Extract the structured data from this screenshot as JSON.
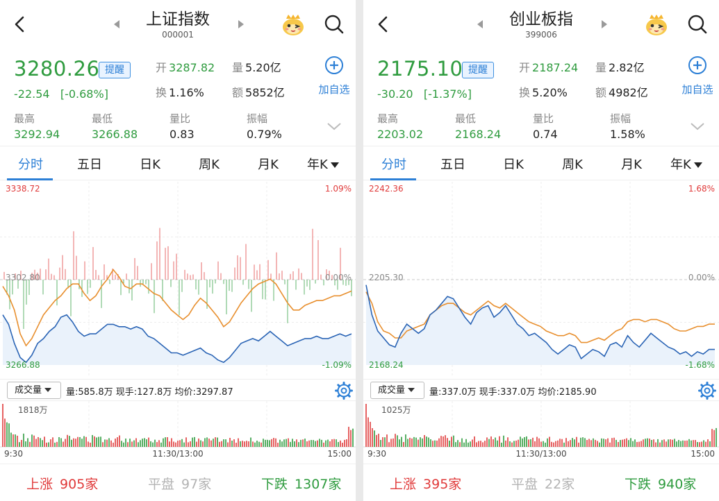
{
  "panels": [
    {
      "title": "上证指数",
      "code": "000001",
      "price": "3280.26",
      "alert_label": "提醒",
      "change": "-22.54",
      "change_pct": "[-0.68%]",
      "open_label": "开",
      "open": "3287.82",
      "volume_label": "量",
      "volume": "5.20亿",
      "turnover_label": "换",
      "turnover": "1.16%",
      "amount_label": "额",
      "amount": "5852亿",
      "add_watchlist": "加自选",
      "high_label": "最高",
      "high": "3292.94",
      "low_label": "最低",
      "low": "3266.88",
      "vol_ratio_label": "量比",
      "vol_ratio": "0.83",
      "amplitude_label": "振幅",
      "amplitude": "0.79%",
      "tabs": [
        "分时",
        "五日",
        "日K",
        "周K",
        "月K",
        "年K"
      ],
      "active_tab": 0,
      "chart_top_label": "3338.72",
      "chart_mid_label": "3302.80",
      "chart_bottom_label": "3266.88",
      "chart_top_pct": "1.09%",
      "chart_mid_pct": "0.00%",
      "chart_bottom_pct": "-1.09%",
      "vol_select": "成交量",
      "vol_info": "量:585.8万  现手:127.8万  均价:3297.87",
      "vol_max_label": "1818万",
      "time_start": "9:30",
      "time_mid": "11:30/13:00",
      "time_end": "15:00",
      "up_label": "上涨",
      "up_count": "905家",
      "flat_label": "平盘",
      "flat_count": "97家",
      "down_label": "下跌",
      "down_count": "1307家"
    },
    {
      "title": "创业板指",
      "code": "399006",
      "price": "2175.10",
      "alert_label": "提醒",
      "change": "-30.20",
      "change_pct": "[-1.37%]",
      "open_label": "开",
      "open": "2187.24",
      "volume_label": "量",
      "volume": "2.82亿",
      "turnover_label": "换",
      "turnover": "5.20%",
      "amount_label": "额",
      "amount": "4982亿",
      "add_watchlist": "加自选",
      "high_label": "最高",
      "high": "2203.02",
      "low_label": "最低",
      "low": "2168.24",
      "vol_ratio_label": "量比",
      "vol_ratio": "0.74",
      "amplitude_label": "振幅",
      "amplitude": "1.58%",
      "tabs": [
        "分时",
        "五日",
        "日K",
        "周K",
        "月K",
        "年K"
      ],
      "active_tab": 0,
      "chart_top_label": "2242.36",
      "chart_mid_label": "2205.30",
      "chart_bottom_label": "2168.24",
      "chart_top_pct": "1.68%",
      "chart_mid_pct": "0.00%",
      "chart_bottom_pct": "-1.68%",
      "vol_select": "成交量",
      "vol_info": "量:337.0万  现手:337.0万  均价:2185.90",
      "vol_max_label": "1025万",
      "time_start": "9:30",
      "time_mid": "11:30/13:00",
      "time_end": "15:00",
      "up_label": "上涨",
      "up_count": "395家",
      "flat_label": "平盘",
      "flat_count": "22家",
      "down_label": "下跌",
      "down_count": "940家"
    }
  ],
  "colors": {
    "up": "#e03a3a",
    "down": "#2e9b3e",
    "accent": "#2c7fd6",
    "price_line": "#2a64b5",
    "avg_line": "#e88f2e",
    "fill": "#eaf2fb"
  },
  "chart_data": [
    {
      "type": "line",
      "title": "上证指数",
      "x_labels": [
        "9:30",
        "11:30/13:00",
        "15:00"
      ],
      "ylim": [
        3266.88,
        3338.72
      ],
      "reference": 3302.8,
      "series": [
        {
          "values": [
            3288,
            3284,
            3276,
            3270,
            3268,
            3271,
            3276,
            3278,
            3281,
            3283,
            3287,
            3288,
            3285,
            3281,
            3279,
            3280,
            3280,
            3282,
            3284,
            3284,
            3283,
            3283,
            3282,
            3283,
            3282,
            3279,
            3278,
            3276,
            3274,
            3272,
            3272,
            3271,
            3272,
            3273,
            3274,
            3272,
            3271,
            3269,
            3268,
            3270,
            3273,
            3276,
            3277,
            3278,
            3277,
            3279,
            3281,
            3279,
            3277,
            3275,
            3276,
            3277,
            3278,
            3278,
            3279,
            3278,
            3278,
            3279,
            3280,
            3279,
            3280
          ]
        },
        {
          "values": [
            3300,
            3296,
            3290,
            3280,
            3275,
            3278,
            3283,
            3288,
            3291,
            3294,
            3296,
            3299,
            3301,
            3301,
            3297,
            3294,
            3296,
            3300,
            3303,
            3307,
            3304,
            3300,
            3299,
            3301,
            3301,
            3299,
            3297,
            3296,
            3293,
            3290,
            3288,
            3286,
            3288,
            3292,
            3295,
            3293,
            3290,
            3287,
            3283,
            3285,
            3289,
            3293,
            3296,
            3299,
            3301,
            3302,
            3303,
            3301,
            3297,
            3293,
            3290,
            3290,
            3292,
            3293,
            3294,
            3294,
            3295,
            3296,
            3296,
            3297,
            3298
          ]
        }
      ],
      "volume": {
        "max_label": "1818万"
      }
    },
    {
      "type": "line",
      "title": "创业板指",
      "x_labels": [
        "9:30",
        "11:30/13:00",
        "15:00"
      ],
      "ylim": [
        2168.24,
        2242.36
      ],
      "reference": 2205.3,
      "series": [
        {
          "values": [
            2203,
            2190,
            2183,
            2180,
            2177,
            2176,
            2182,
            2186,
            2184,
            2182,
            2184,
            2190,
            2192,
            2195,
            2198,
            2197,
            2193,
            2189,
            2186,
            2191,
            2193,
            2194,
            2189,
            2191,
            2194,
            2190,
            2186,
            2184,
            2181,
            2182,
            2180,
            2178,
            2175,
            2173,
            2175,
            2177,
            2176,
            2171,
            2173,
            2175,
            2174,
            2172,
            2177,
            2178,
            2176,
            2181,
            2178,
            2176,
            2179,
            2182,
            2180,
            2178,
            2176,
            2175,
            2173,
            2174,
            2172,
            2174,
            2173,
            2175,
            2175
          ]
        },
        {
          "values": [
            2200,
            2195,
            2187,
            2183,
            2182,
            2180,
            2180,
            2183,
            2184,
            2185,
            2186,
            2190,
            2192,
            2194,
            2195,
            2195,
            2193,
            2191,
            2190,
            2192,
            2194,
            2196,
            2194,
            2193,
            2195,
            2193,
            2191,
            2189,
            2187,
            2186,
            2185,
            2183,
            2182,
            2181,
            2181,
            2182,
            2181,
            2178,
            2178,
            2179,
            2180,
            2179,
            2181,
            2183,
            2184,
            2187,
            2188,
            2188,
            2187,
            2188,
            2188,
            2187,
            2186,
            2184,
            2183,
            2183,
            2184,
            2185,
            2185,
            2186,
            2186
          ]
        }
      ],
      "volume": {
        "max_label": "1025万"
      }
    }
  ]
}
